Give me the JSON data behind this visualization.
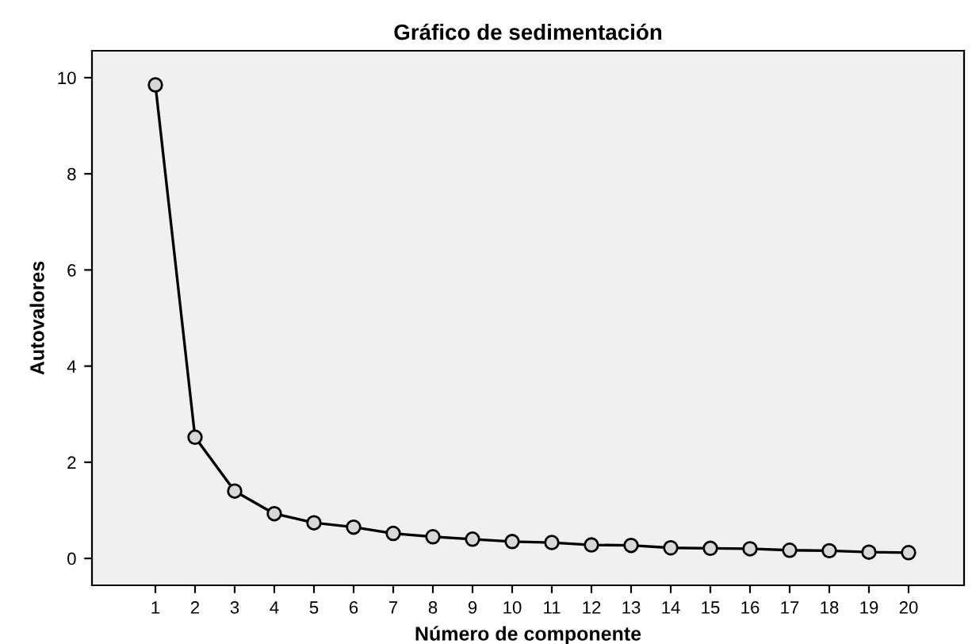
{
  "chart_data": {
    "type": "line",
    "title": "Gráfico de sedimentación",
    "xlabel": "Número de componente",
    "ylabel": "Autovalores",
    "x": [
      1,
      2,
      3,
      4,
      5,
      6,
      7,
      8,
      9,
      10,
      11,
      12,
      13,
      14,
      15,
      16,
      17,
      18,
      19,
      20
    ],
    "series": [
      {
        "color": "#000000",
        "values": [
          9.85,
          2.52,
          1.4,
          0.93,
          0.74,
          0.65,
          0.52,
          0.45,
          0.4,
          0.35,
          0.33,
          0.28,
          0.27,
          0.22,
          0.21,
          0.2,
          0.17,
          0.16,
          0.13,
          0.12
        ]
      }
    ],
    "xlim": [
      -0.6,
      21.4
    ],
    "xticks": [
      1,
      2,
      3,
      4,
      5,
      6,
      7,
      8,
      9,
      10,
      11,
      12,
      13,
      14,
      15,
      16,
      17,
      18,
      19,
      20
    ],
    "ylim": [
      -0.56,
      10.56
    ],
    "yticks": [
      0,
      2,
      4,
      6,
      8,
      10
    ],
    "marker": "circle",
    "line_style": "solid",
    "grid": false,
    "legend": false
  }
}
